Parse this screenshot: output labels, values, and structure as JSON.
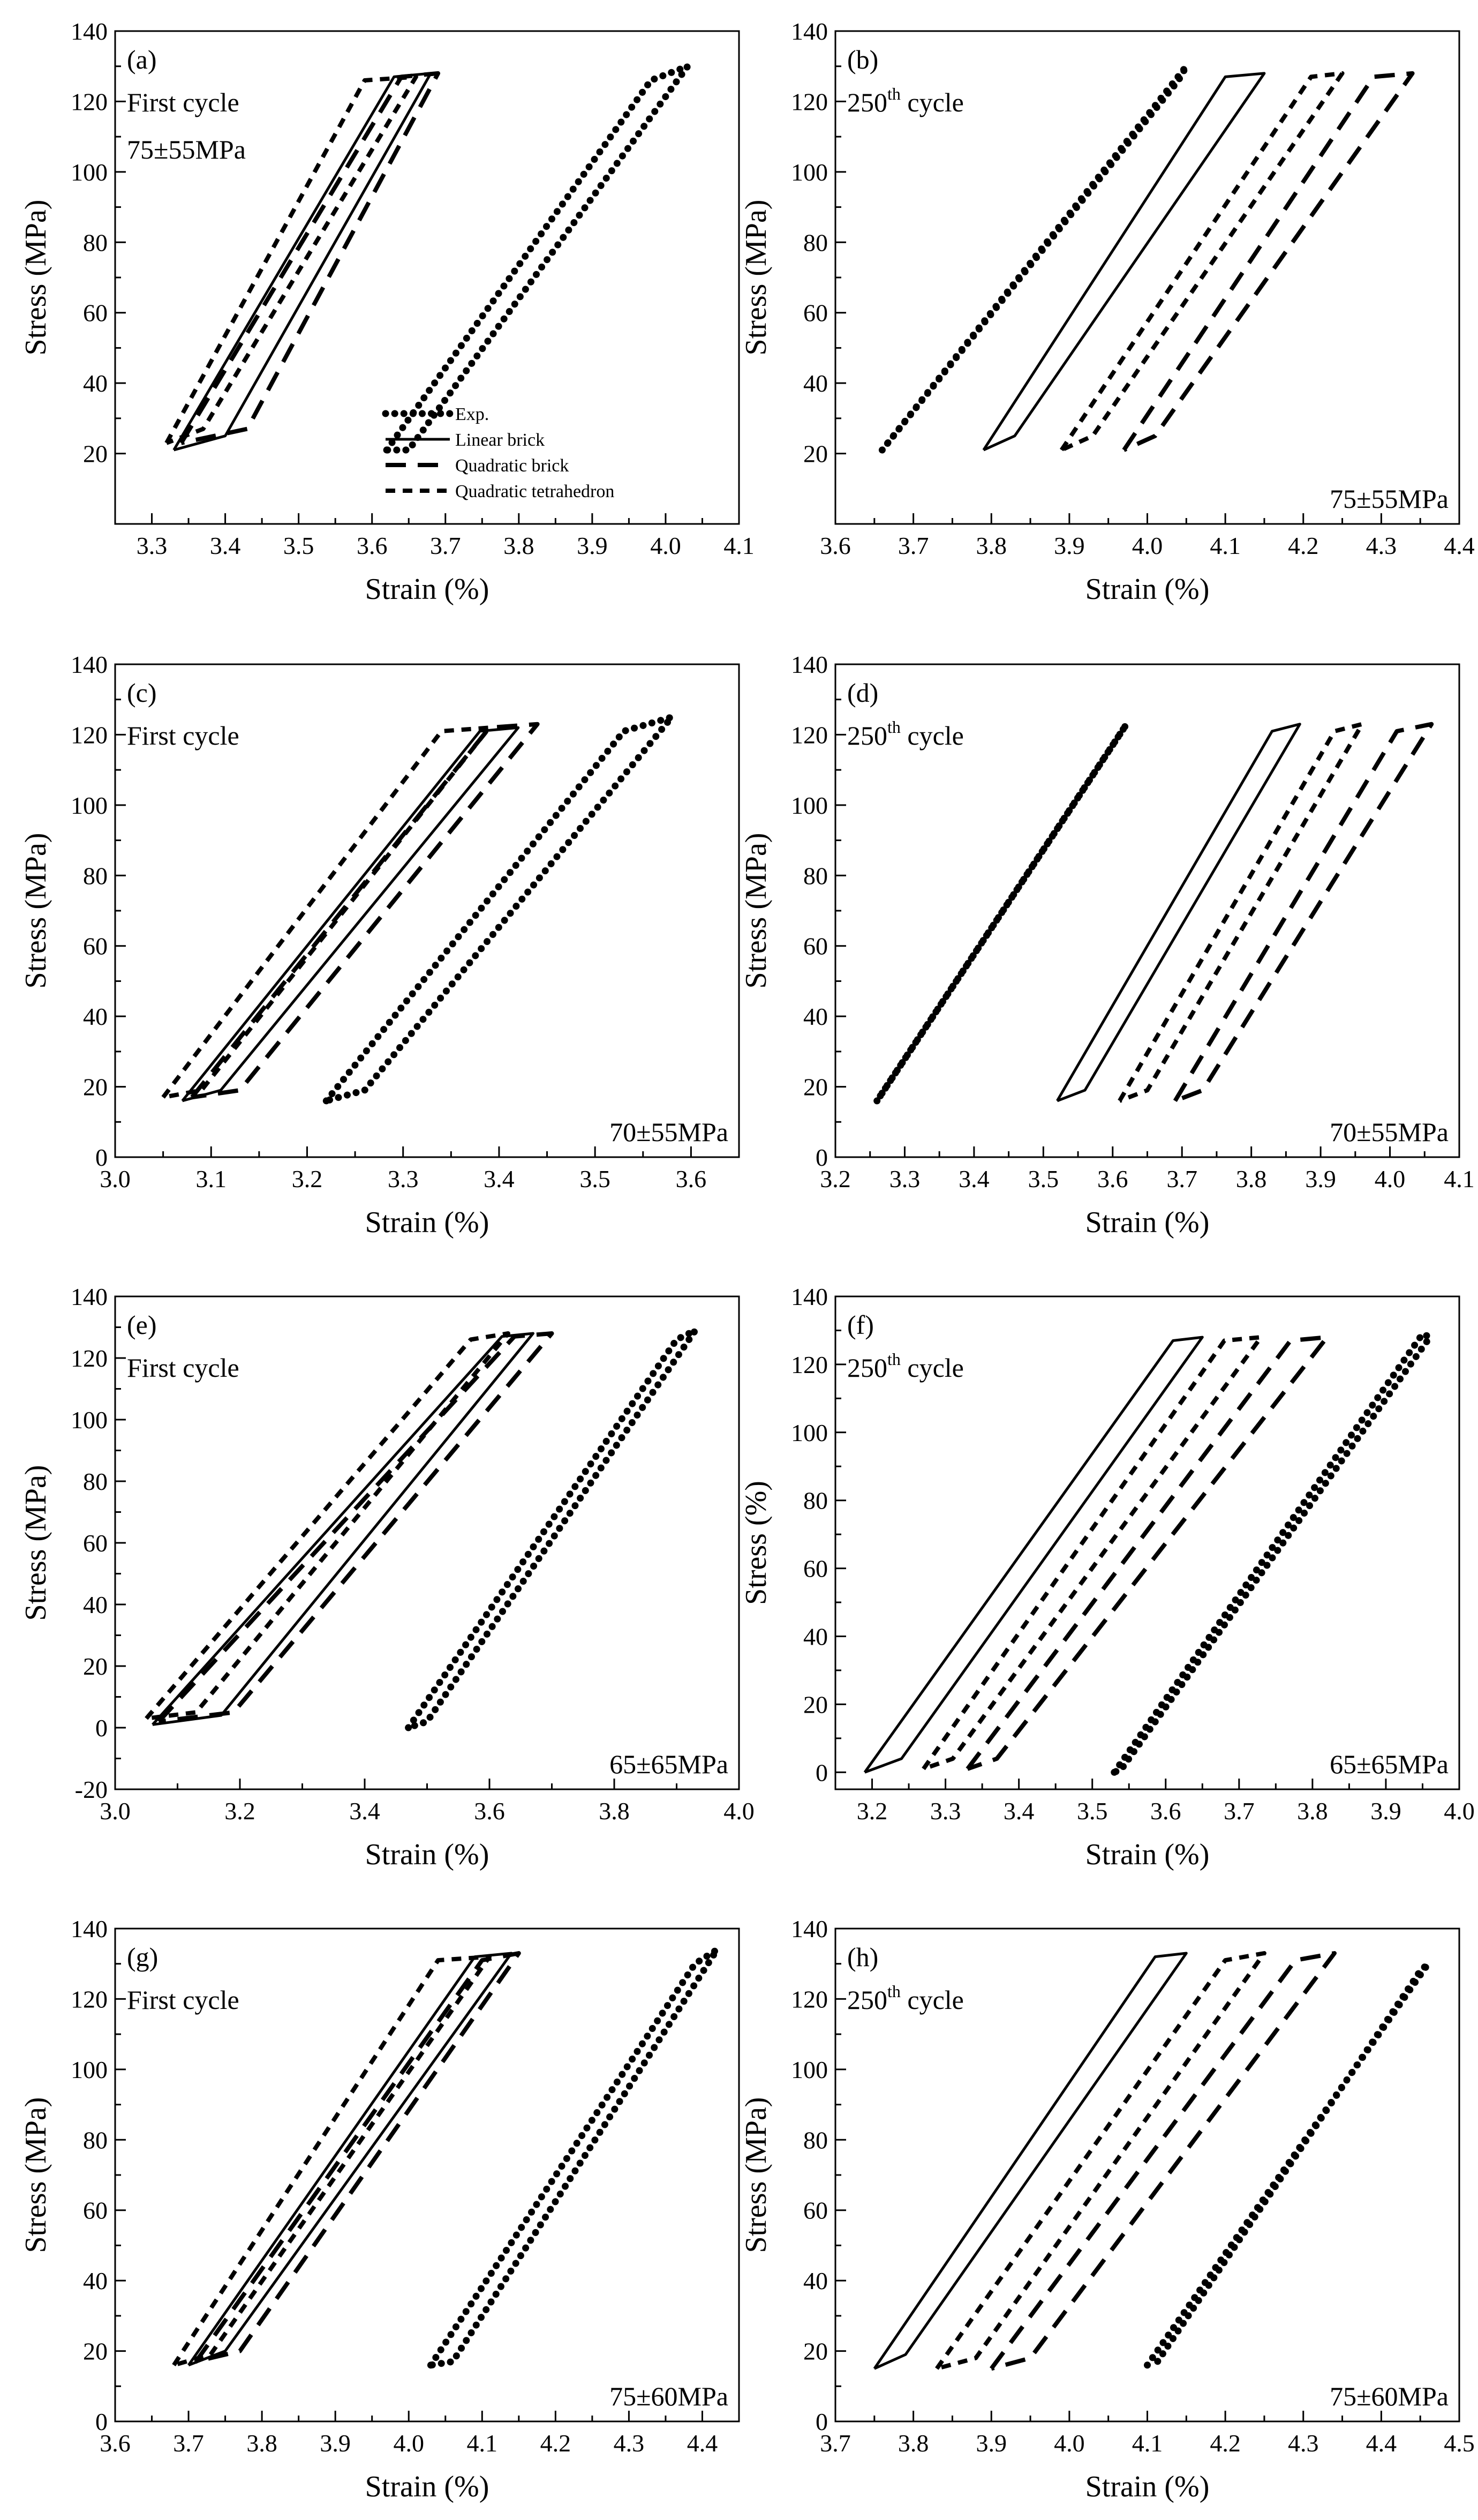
{
  "figure": {
    "description_visible_only": true
  },
  "legend": {
    "entries": [
      "Exp.",
      "Linear brick",
      "Quadratic brick",
      "Quadratic tetrahedron"
    ]
  },
  "chart_data": [
    {
      "id": "a",
      "type": "line",
      "panel_label": "(a)",
      "annotations": [
        "First cycle",
        "75±55MPa"
      ],
      "xlabel": "Strain (%)",
      "ylabel": "Stress (MPa)",
      "xlim": [
        3.25,
        4.1
      ],
      "ylim": [
        0,
        140
      ],
      "xticks": [
        3.3,
        3.4,
        3.5,
        3.6,
        3.7,
        3.8,
        3.9,
        4.0,
        4.1
      ],
      "xtick_labels": [
        "3.3",
        "3.4",
        "3.5",
        "3.6",
        "3.7",
        "3.8",
        "3.9",
        "4.0",
        "4.1"
      ],
      "yticks": [
        20,
        40,
        60,
        80,
        100,
        120,
        140
      ],
      "ytick_labels": [
        "20",
        "40",
        "60",
        "80",
        "100",
        "120",
        "140"
      ],
      "series": [
        {
          "name": "Exp.",
          "style": "dotted",
          "x": [
            3.62,
            3.98,
            4.03,
            3.65,
            3.62
          ],
          "y": [
            21,
            126,
            130,
            21,
            21
          ]
        },
        {
          "name": "Linear brick",
          "style": "solid",
          "x": [
            3.33,
            3.63,
            3.68,
            3.4,
            3.33
          ],
          "y": [
            21,
            127,
            128,
            25,
            21
          ]
        },
        {
          "name": "Quadratic brick",
          "style": "dashed",
          "x": [
            3.34,
            3.64,
            3.69,
            3.43,
            3.34
          ],
          "y": [
            23,
            127,
            128,
            27,
            23
          ]
        },
        {
          "name": "Quadratic tetrahedron",
          "style": "short-dashed",
          "x": [
            3.32,
            3.59,
            3.66,
            3.37,
            3.32
          ],
          "y": [
            23,
            126,
            127,
            27,
            23
          ]
        }
      ],
      "legend": "bottom-center"
    },
    {
      "id": "b",
      "type": "line",
      "panel_label": "(b)",
      "annotations": [
        "250",
        "th",
        " cycle",
        "75±55MPa"
      ],
      "xlabel": "Strain (%)",
      "ylabel": "Stress (MPa)",
      "xlim": [
        3.6,
        4.4
      ],
      "ylim": [
        0,
        140
      ],
      "xticks": [
        3.6,
        3.7,
        3.8,
        3.9,
        4.0,
        4.1,
        4.2,
        4.3,
        4.4
      ],
      "xtick_labels": [
        "3.6",
        "3.7",
        "3.8",
        "3.9",
        "4.0",
        "4.1",
        "4.2",
        "4.3",
        "4.4"
      ],
      "yticks": [
        20,
        40,
        60,
        80,
        100,
        120,
        140
      ],
      "ytick_labels": [
        "20",
        "40",
        "60",
        "80",
        "100",
        "120",
        "140"
      ],
      "series": [
        {
          "name": "Exp.",
          "style": "dotted",
          "x": [
            3.66,
            4.05,
            4.04,
            3.66
          ],
          "y": [
            21,
            130,
            126,
            21
          ]
        },
        {
          "name": "Linear brick",
          "style": "solid",
          "x": [
            3.79,
            4.1,
            4.15,
            3.83,
            3.79
          ],
          "y": [
            21,
            127,
            128,
            25,
            21
          ]
        },
        {
          "name": "Quadratic tetrahedron",
          "style": "short-dashed",
          "x": [
            3.89,
            4.21,
            4.25,
            3.93,
            3.89
          ],
          "y": [
            21,
            127,
            128,
            25,
            21
          ]
        },
        {
          "name": "Quadratic brick",
          "style": "dashed",
          "x": [
            3.97,
            4.29,
            4.34,
            4.01,
            3.97
          ],
          "y": [
            21,
            127,
            128,
            25,
            21
          ]
        }
      ]
    },
    {
      "id": "c",
      "type": "line",
      "panel_label": "(c)",
      "annotations": [
        "First cycle",
        "70±55MPa"
      ],
      "xlabel": "Strain (%)",
      "ylabel": "Stress (MPa)",
      "xlim": [
        3.0,
        3.65
      ],
      "ylim": [
        0,
        140
      ],
      "xticks": [
        3.0,
        3.1,
        3.2,
        3.3,
        3.4,
        3.5,
        3.6
      ],
      "xtick_labels": [
        "3.0",
        "3.1",
        "3.2",
        "3.3",
        "3.4",
        "3.5",
        "3.6"
      ],
      "yticks": [
        0,
        20,
        40,
        60,
        80,
        100,
        120,
        140
      ],
      "ytick_labels": [
        "0",
        "20",
        "40",
        "60",
        "80",
        "100",
        "120",
        "140"
      ],
      "series": [
        {
          "name": "Exp.",
          "style": "dotted",
          "x": [
            3.22,
            3.53,
            3.58,
            3.26,
            3.22
          ],
          "y": [
            16,
            121,
            125,
            19,
            16
          ]
        },
        {
          "name": "Linear brick",
          "style": "solid",
          "x": [
            3.07,
            3.38,
            3.42,
            3.11,
            3.07
          ],
          "y": [
            16,
            121,
            122,
            19,
            16
          ]
        },
        {
          "name": "Quadratic brick",
          "style": "dashed",
          "x": [
            3.08,
            3.39,
            3.44,
            3.13,
            3.08
          ],
          "y": [
            17,
            122,
            123,
            19,
            17
          ]
        },
        {
          "name": "Quadratic tetrahedron",
          "style": "short-dashed",
          "x": [
            3.05,
            3.34,
            3.39,
            3.09,
            3.05
          ],
          "y": [
            17,
            121,
            122,
            19,
            17
          ]
        }
      ]
    },
    {
      "id": "d",
      "type": "line",
      "panel_label": "(d)",
      "annotations": [
        "250",
        "th",
        " cycle",
        "70±55MPa"
      ],
      "xlabel": "Strain (%)",
      "ylabel": "Stress (MPa)",
      "xlim": [
        3.2,
        4.1
      ],
      "ylim": [
        0,
        140
      ],
      "xticks": [
        3.2,
        3.3,
        3.4,
        3.5,
        3.6,
        3.7,
        3.8,
        3.9,
        4.0,
        4.1
      ],
      "xtick_labels": [
        "3.2",
        "3.3",
        "3.4",
        "3.5",
        "3.6",
        "3.7",
        "3.8",
        "3.9",
        "4.0",
        "4.1"
      ],
      "yticks": [
        0,
        20,
        40,
        60,
        80,
        100,
        120,
        140
      ],
      "ytick_labels": [
        "0",
        "20",
        "40",
        "60",
        "80",
        "100",
        "120",
        "140"
      ],
      "series": [
        {
          "name": "Exp.",
          "style": "dotted",
          "x": [
            3.26,
            3.62,
            3.61,
            3.26
          ],
          "y": [
            16,
            123,
            120,
            16
          ]
        },
        {
          "name": "Linear brick",
          "style": "solid",
          "x": [
            3.52,
            3.83,
            3.87,
            3.56,
            3.52
          ],
          "y": [
            16,
            121,
            123,
            19,
            16
          ]
        },
        {
          "name": "Quadratic tetrahedron",
          "style": "short-dashed",
          "x": [
            3.61,
            3.92,
            3.96,
            3.65,
            3.61
          ],
          "y": [
            16,
            121,
            123,
            19,
            16
          ]
        },
        {
          "name": "Quadratic brick",
          "style": "dashed",
          "x": [
            3.69,
            4.01,
            4.06,
            3.73,
            3.69
          ],
          "y": [
            16,
            121,
            123,
            19,
            16
          ]
        }
      ]
    },
    {
      "id": "e",
      "type": "line",
      "panel_label": "(e)",
      "annotations": [
        "First cycle",
        "65±65MPa"
      ],
      "xlabel": "Strain (%)",
      "ylabel": "Stress (MPa)",
      "xlim": [
        3.0,
        4.0
      ],
      "ylim": [
        -20,
        140
      ],
      "xticks": [
        3.0,
        3.2,
        3.4,
        3.6,
        3.8,
        4.0
      ],
      "xtick_labels": [
        "3.0",
        "3.2",
        "3.4",
        "3.6",
        "3.8",
        "4.0"
      ],
      "yticks": [
        -20,
        0,
        20,
        40,
        60,
        80,
        100,
        120,
        140
      ],
      "ytick_labels": [
        "-20",
        "0",
        "20",
        "40",
        "60",
        "80",
        "100",
        "120",
        "140"
      ],
      "series": [
        {
          "name": "Exp.",
          "style": "dotted",
          "x": [
            3.47,
            3.9,
            3.93,
            3.5,
            3.47
          ],
          "y": [
            0,
            126,
            129,
            2,
            0
          ]
        },
        {
          "name": "Linear brick",
          "style": "solid",
          "x": [
            3.06,
            3.62,
            3.67,
            3.17,
            3.06
          ],
          "y": [
            1,
            127,
            128,
            4,
            1
          ]
        },
        {
          "name": "Quadratic brick",
          "style": "dashed",
          "x": [
            3.07,
            3.64,
            3.7,
            3.19,
            3.07
          ],
          "y": [
            2,
            127,
            128,
            5,
            2
          ]
        },
        {
          "name": "Quadratic tetrahedron",
          "style": "short-dashed",
          "x": [
            3.05,
            3.57,
            3.63,
            3.13,
            3.05
          ],
          "y": [
            3,
            126,
            128,
            5,
            3
          ]
        }
      ]
    },
    {
      "id": "f",
      "type": "line",
      "panel_label": "(f)",
      "annotations": [
        "250",
        "th",
        " cycle",
        "65±65MPa"
      ],
      "xlabel": "Strain (%)",
      "ylabel": "Stress (%)",
      "xlim": [
        3.15,
        4.0
      ],
      "ylim": [
        -5,
        140
      ],
      "xticks": [
        3.2,
        3.3,
        3.4,
        3.5,
        3.6,
        3.7,
        3.8,
        3.9,
        4.0
      ],
      "xtick_labels": [
        "3.2",
        "3.3",
        "3.4",
        "3.5",
        "3.6",
        "3.7",
        "3.8",
        "3.9",
        "4.0"
      ],
      "yticks": [
        0,
        20,
        40,
        60,
        80,
        100,
        120,
        140
      ],
      "ytick_labels": [
        "0",
        "20",
        "40",
        "60",
        "80",
        "100",
        "120",
        "140"
      ],
      "series": [
        {
          "name": "Linear brick",
          "style": "solid",
          "x": [
            3.19,
            3.61,
            3.65,
            3.24,
            3.19
          ],
          "y": [
            0,
            127,
            128,
            4,
            0
          ]
        },
        {
          "name": "Quadratic tetrahedron",
          "style": "short-dashed",
          "x": [
            3.27,
            3.68,
            3.73,
            3.31,
            3.27
          ],
          "y": [
            1,
            127,
            128,
            4,
            1
          ]
        },
        {
          "name": "Quadratic brick",
          "style": "dashed",
          "x": [
            3.33,
            3.77,
            3.82,
            3.37,
            3.33
          ],
          "y": [
            1,
            127,
            128,
            4,
            1
          ]
        },
        {
          "name": "Exp.",
          "style": "dotted",
          "x": [
            3.53,
            3.95,
            3.96,
            3.54,
            3.53
          ],
          "y": [
            0,
            129,
            128,
            1,
            0
          ]
        }
      ]
    },
    {
      "id": "g",
      "type": "line",
      "panel_label": "(g)",
      "annotations": [
        "First cycle",
        "75±60MPa"
      ],
      "xlabel": "Strain (%)",
      "ylabel": "Stress (MPa)",
      "xlim": [
        3.6,
        4.45
      ],
      "ylim": [
        0,
        140
      ],
      "xticks": [
        3.6,
        3.7,
        3.8,
        3.9,
        4.0,
        4.1,
        4.2,
        4.3,
        4.4
      ],
      "xtick_labels": [
        "3.6",
        "3.7",
        "3.8",
        "3.9",
        "4.0",
        "4.1",
        "4.2",
        "4.3",
        "4.4"
      ],
      "yticks": [
        0,
        20,
        40,
        60,
        80,
        100,
        120,
        140
      ],
      "ytick_labels": [
        "0",
        "20",
        "40",
        "60",
        "80",
        "100",
        "120",
        "140"
      ],
      "series": [
        {
          "name": "Exp.",
          "style": "dotted",
          "x": [
            4.03,
            4.39,
            4.42,
            4.06,
            4.03
          ],
          "y": [
            16,
            130,
            134,
            17,
            16
          ]
        },
        {
          "name": "Linear brick",
          "style": "solid",
          "x": [
            3.7,
            4.09,
            4.14,
            3.75,
            3.7
          ],
          "y": [
            16,
            132,
            133,
            20,
            16
          ]
        },
        {
          "name": "Quadratic brick",
          "style": "dashed",
          "x": [
            3.71,
            4.1,
            4.15,
            3.77,
            3.71
          ],
          "y": [
            17,
            131,
            133,
            20,
            17
          ]
        },
        {
          "name": "Quadratic tetrahedron",
          "style": "short-dashed",
          "x": [
            3.68,
            4.04,
            4.11,
            3.73,
            3.68
          ],
          "y": [
            16,
            131,
            132,
            19,
            16
          ]
        }
      ]
    },
    {
      "id": "h",
      "type": "line",
      "panel_label": "(h)",
      "annotations": [
        "250",
        "th",
        " cycle",
        "75±60MPa"
      ],
      "xlabel": "Strain (%)",
      "ylabel": "Stress (MPa)",
      "xlim": [
        3.7,
        4.5
      ],
      "ylim": [
        0,
        140
      ],
      "xticks": [
        3.7,
        3.8,
        3.9,
        4.0,
        4.1,
        4.2,
        4.3,
        4.4,
        4.5
      ],
      "xtick_labels": [
        "3.7",
        "3.8",
        "3.9",
        "4.0",
        "4.1",
        "4.2",
        "4.3",
        "4.4",
        "4.5"
      ],
      "yticks": [
        0,
        20,
        40,
        60,
        80,
        100,
        120,
        140
      ],
      "ytick_labels": [
        "0",
        "20",
        "40",
        "60",
        "80",
        "100",
        "120",
        "140"
      ],
      "series": [
        {
          "name": "Linear brick",
          "style": "solid",
          "x": [
            3.75,
            4.11,
            4.15,
            3.79,
            3.75
          ],
          "y": [
            15,
            132,
            133,
            19,
            15
          ]
        },
        {
          "name": "Quadratic tetrahedron",
          "style": "short-dashed",
          "x": [
            3.83,
            4.2,
            4.25,
            3.88,
            3.83
          ],
          "y": [
            15,
            131,
            133,
            18,
            15
          ]
        },
        {
          "name": "Quadratic brick",
          "style": "dashed",
          "x": [
            3.9,
            4.29,
            4.34,
            3.95,
            3.9
          ],
          "y": [
            15,
            131,
            133,
            18,
            15
          ]
        },
        {
          "name": "Exp.",
          "style": "dotted",
          "x": [
            4.1,
            4.46,
            4.45,
            4.11
          ],
          "y": [
            16,
            130,
            128,
            16
          ]
        }
      ]
    }
  ]
}
